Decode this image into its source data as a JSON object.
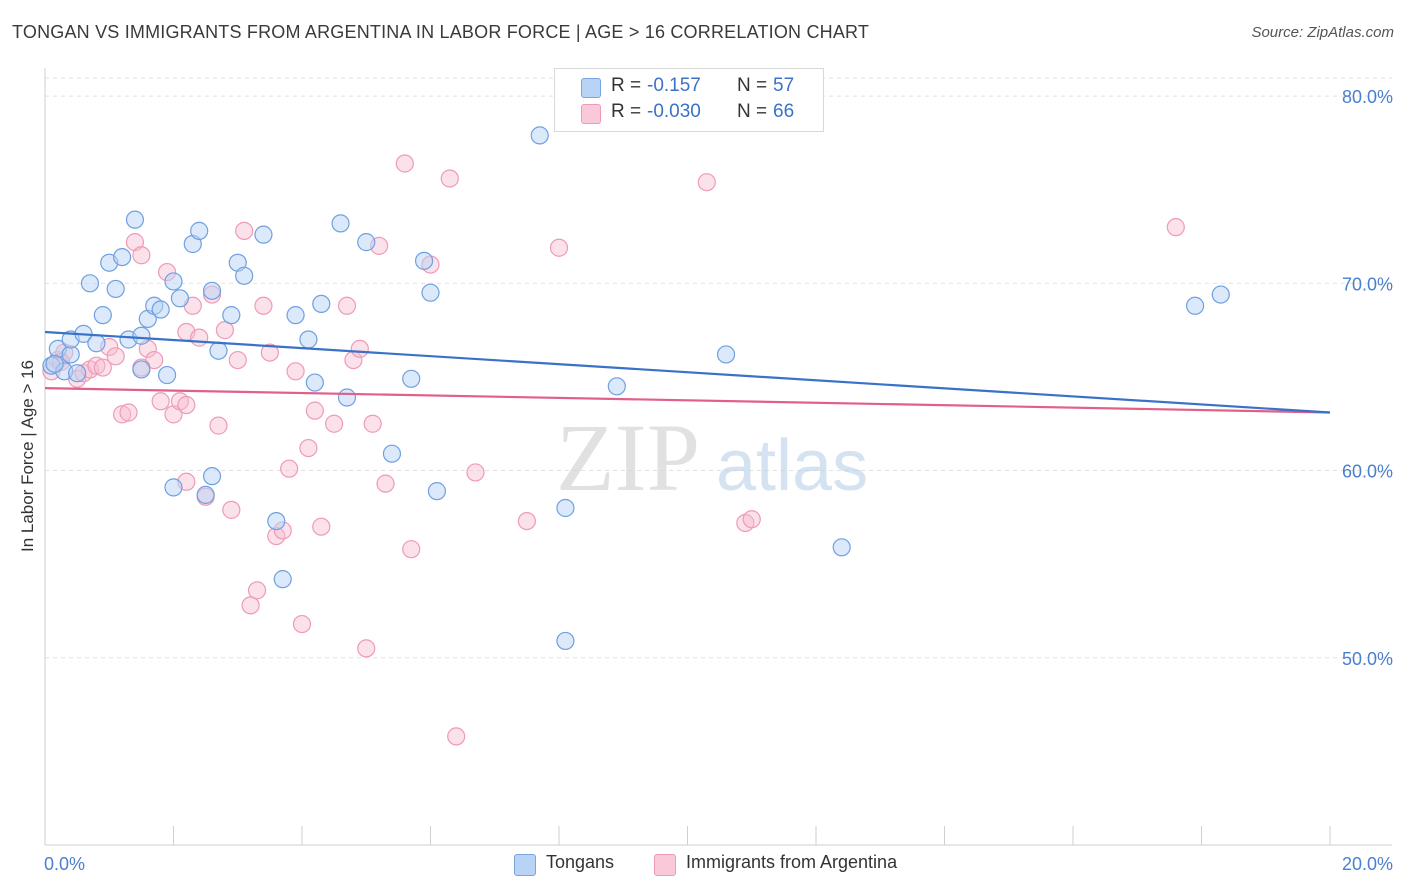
{
  "title": "TONGAN VS IMMIGRANTS FROM ARGENTINA IN LABOR FORCE | AGE > 16 CORRELATION CHART",
  "source": "Source: ZipAtlas.com",
  "watermark": {
    "zip": "ZIP",
    "atlas": "atlas"
  },
  "legend": {
    "r_label": "R =",
    "n_label": "N =",
    "series": [
      {
        "name": "Tongans",
        "r": "-0.157",
        "n": "57"
      },
      {
        "name": "Immigrants from Argentina",
        "r": "-0.030",
        "n": "66"
      }
    ]
  },
  "chart_data": {
    "type": "scatter",
    "title": "TONGAN VS IMMIGRANTS FROM ARGENTINA IN LABOR FORCE | AGE > 16 CORRELATION CHART",
    "xlabel": "",
    "ylabel": "In Labor Force | Age > 16",
    "xlim": [
      0,
      20
    ],
    "ylim": [
      40,
      81.5
    ],
    "x_tick_labels": [
      "0.0%",
      "20.0%"
    ],
    "y_ticks": [
      50,
      60,
      70,
      80
    ],
    "y_tick_labels": [
      "50.0%",
      "60.0%",
      "70.0%",
      "80.0%"
    ],
    "colors": {
      "tongans": "#6fa0e0",
      "argentina": "#f09ab8",
      "tongans_line": "#3a72c8",
      "argentina_line": "#e0608a"
    },
    "series": [
      {
        "name": "Tongans",
        "trend": {
          "x": [
            0,
            20
          ],
          "y": [
            67.4,
            63.1
          ]
        },
        "points": [
          [
            0.1,
            65.6
          ],
          [
            0.2,
            66.5
          ],
          [
            0.3,
            65.3
          ],
          [
            0.4,
            66.2
          ],
          [
            0.4,
            67.0
          ],
          [
            0.5,
            65.2
          ],
          [
            0.6,
            67.3
          ],
          [
            0.7,
            70.0
          ],
          [
            0.8,
            66.8
          ],
          [
            0.9,
            68.3
          ],
          [
            1.0,
            71.1
          ],
          [
            1.1,
            69.7
          ],
          [
            1.2,
            71.4
          ],
          [
            1.3,
            67.0
          ],
          [
            1.4,
            73.4
          ],
          [
            1.5,
            67.2
          ],
          [
            1.5,
            65.4
          ],
          [
            1.6,
            68.1
          ],
          [
            1.7,
            68.8
          ],
          [
            1.8,
            68.6
          ],
          [
            1.9,
            65.1
          ],
          [
            2.0,
            59.1
          ],
          [
            2.0,
            70.1
          ],
          [
            2.1,
            69.2
          ],
          [
            2.3,
            72.1
          ],
          [
            2.4,
            72.8
          ],
          [
            2.5,
            58.7
          ],
          [
            2.6,
            69.6
          ],
          [
            2.6,
            59.7
          ],
          [
            2.7,
            66.4
          ],
          [
            2.9,
            68.3
          ],
          [
            3.0,
            71.1
          ],
          [
            3.1,
            70.4
          ],
          [
            3.4,
            72.6
          ],
          [
            3.6,
            57.3
          ],
          [
            3.7,
            54.2
          ],
          [
            3.9,
            68.3
          ],
          [
            4.1,
            67.0
          ],
          [
            4.2,
            64.7
          ],
          [
            4.3,
            68.9
          ],
          [
            4.6,
            73.2
          ],
          [
            4.7,
            63.9
          ],
          [
            5.0,
            72.2
          ],
          [
            5.4,
            60.9
          ],
          [
            5.7,
            64.9
          ],
          [
            5.9,
            71.2
          ],
          [
            6.0,
            69.5
          ],
          [
            6.1,
            58.9
          ],
          [
            7.7,
            77.9
          ],
          [
            8.1,
            50.9
          ],
          [
            8.1,
            58.0
          ],
          [
            8.9,
            64.5
          ],
          [
            10.6,
            66.2
          ],
          [
            12.4,
            55.9
          ],
          [
            17.9,
            68.8
          ],
          [
            18.3,
            69.4
          ],
          [
            0.15,
            65.7
          ]
        ]
      },
      {
        "name": "Immigrants from Argentina",
        "trend": {
          "x": [
            0,
            20
          ],
          "y": [
            64.4,
            63.1
          ]
        },
        "points": [
          [
            0.1,
            65.3
          ],
          [
            0.2,
            65.9
          ],
          [
            0.3,
            66.3
          ],
          [
            0.5,
            64.9
          ],
          [
            0.6,
            65.2
          ],
          [
            0.7,
            65.4
          ],
          [
            0.8,
            65.6
          ],
          [
            0.9,
            65.5
          ],
          [
            1.0,
            66.6
          ],
          [
            1.1,
            66.1
          ],
          [
            1.2,
            63.0
          ],
          [
            1.3,
            63.1
          ],
          [
            1.4,
            72.2
          ],
          [
            1.5,
            71.5
          ],
          [
            1.6,
            66.5
          ],
          [
            1.7,
            65.9
          ],
          [
            1.8,
            63.7
          ],
          [
            1.9,
            70.6
          ],
          [
            2.0,
            63.0
          ],
          [
            2.1,
            63.7
          ],
          [
            2.2,
            59.4
          ],
          [
            2.2,
            67.4
          ],
          [
            2.3,
            68.8
          ],
          [
            2.4,
            67.1
          ],
          [
            2.5,
            58.6
          ],
          [
            2.6,
            69.4
          ],
          [
            2.7,
            62.4
          ],
          [
            2.8,
            67.5
          ],
          [
            2.9,
            57.9
          ],
          [
            3.0,
            65.9
          ],
          [
            3.1,
            72.8
          ],
          [
            3.2,
            52.8
          ],
          [
            3.3,
            53.6
          ],
          [
            3.4,
            68.8
          ],
          [
            3.5,
            66.3
          ],
          [
            3.6,
            56.5
          ],
          [
            3.7,
            56.8
          ],
          [
            3.8,
            60.1
          ],
          [
            3.9,
            65.3
          ],
          [
            4.0,
            51.8
          ],
          [
            4.1,
            61.2
          ],
          [
            4.2,
            63.2
          ],
          [
            4.3,
            57.0
          ],
          [
            4.5,
            62.5
          ],
          [
            4.7,
            68.8
          ],
          [
            4.8,
            65.9
          ],
          [
            4.9,
            66.5
          ],
          [
            5.0,
            50.5
          ],
          [
            5.1,
            62.5
          ],
          [
            5.2,
            72.0
          ],
          [
            5.3,
            59.3
          ],
          [
            5.6,
            76.4
          ],
          [
            5.7,
            55.8
          ],
          [
            6.0,
            71.0
          ],
          [
            6.3,
            75.6
          ],
          [
            6.4,
            45.8
          ],
          [
            6.7,
            59.9
          ],
          [
            7.5,
            57.3
          ],
          [
            8.0,
            71.9
          ],
          [
            10.3,
            75.4
          ],
          [
            10.9,
            57.2
          ],
          [
            11.0,
            57.4
          ],
          [
            17.6,
            73.0
          ],
          [
            0.25,
            65.8
          ],
          [
            1.5,
            65.5
          ],
          [
            2.2,
            63.5
          ]
        ]
      }
    ]
  }
}
